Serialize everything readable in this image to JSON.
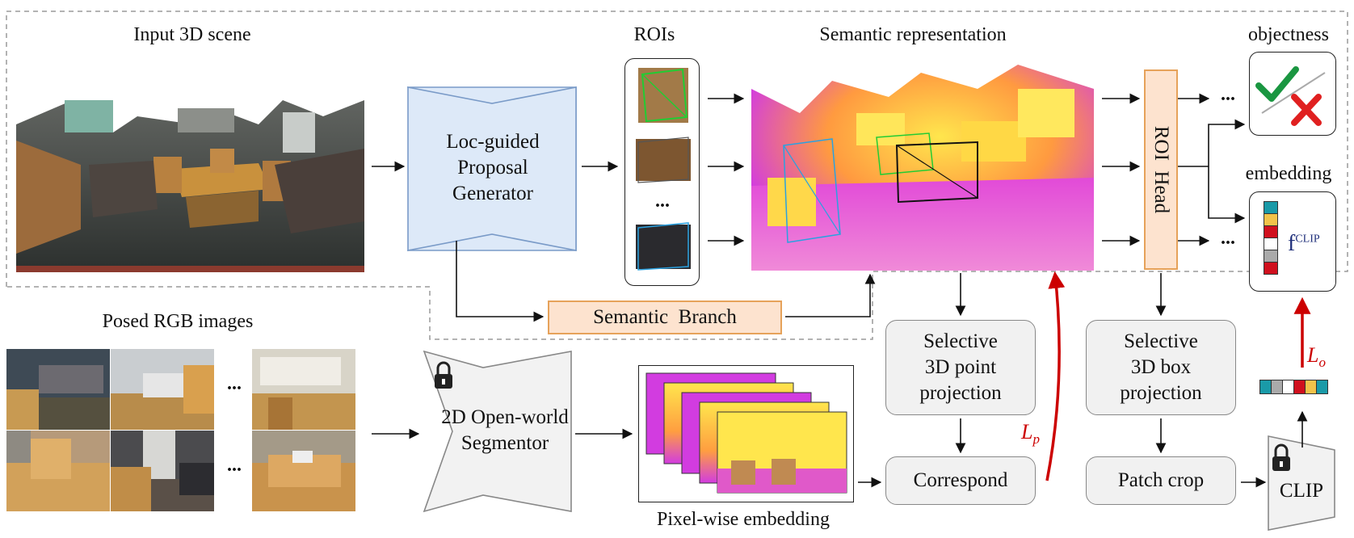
{
  "labels": {
    "input_scene": "Input 3D scene",
    "rois": "ROIs",
    "semantic_rep": "Semantic representation",
    "objectness": "objectness",
    "embedding": "embedding",
    "posed_rgb": "Posed RGB images",
    "pixel_embedding": "Pixel-wise embedding",
    "roi_dots": "...",
    "rgb_dots": "...",
    "out_dots": "..."
  },
  "boxes": {
    "loc_guided": [
      "Loc-guided",
      "Proposal",
      "Generator"
    ],
    "semantic_branch": "Semantic  Branch",
    "roi_head": "ROI  Head",
    "segmentor": [
      "2D Open-world",
      "Segmentor"
    ],
    "point_proj": [
      "Selective",
      "3D point",
      "projection"
    ],
    "box_proj": [
      "Selective",
      "3D box",
      "projection"
    ],
    "correspond": "Correspond",
    "patch_crop": "Patch crop",
    "clip": "CLIP",
    "fclip_base": "f",
    "fclip_sup": "CLIP"
  },
  "losses": {
    "lp": "L",
    "lp_sub": "p",
    "lo": "L",
    "lo_sub": "o"
  },
  "colors": {
    "blue_generator": "#dde9f8",
    "orange_box": "#fde3cf",
    "loss_arrow": "#cc0000",
    "check": "#1a9641",
    "cross": "#e02020",
    "heat_magenta": "#d23ce0",
    "heat_yellow": "#ffd233"
  },
  "embedding_vector_colors": [
    "#1a9aa8",
    "#f2c34a",
    "#d0101e",
    "#ffffff",
    "#aaaaaa",
    "#d0101e"
  ],
  "embedding_bar_colors": [
    "#1a9aa8",
    "#aaaaaa",
    "#ffffff",
    "#d0101e",
    "#f2c34a",
    "#1a9aa8"
  ]
}
